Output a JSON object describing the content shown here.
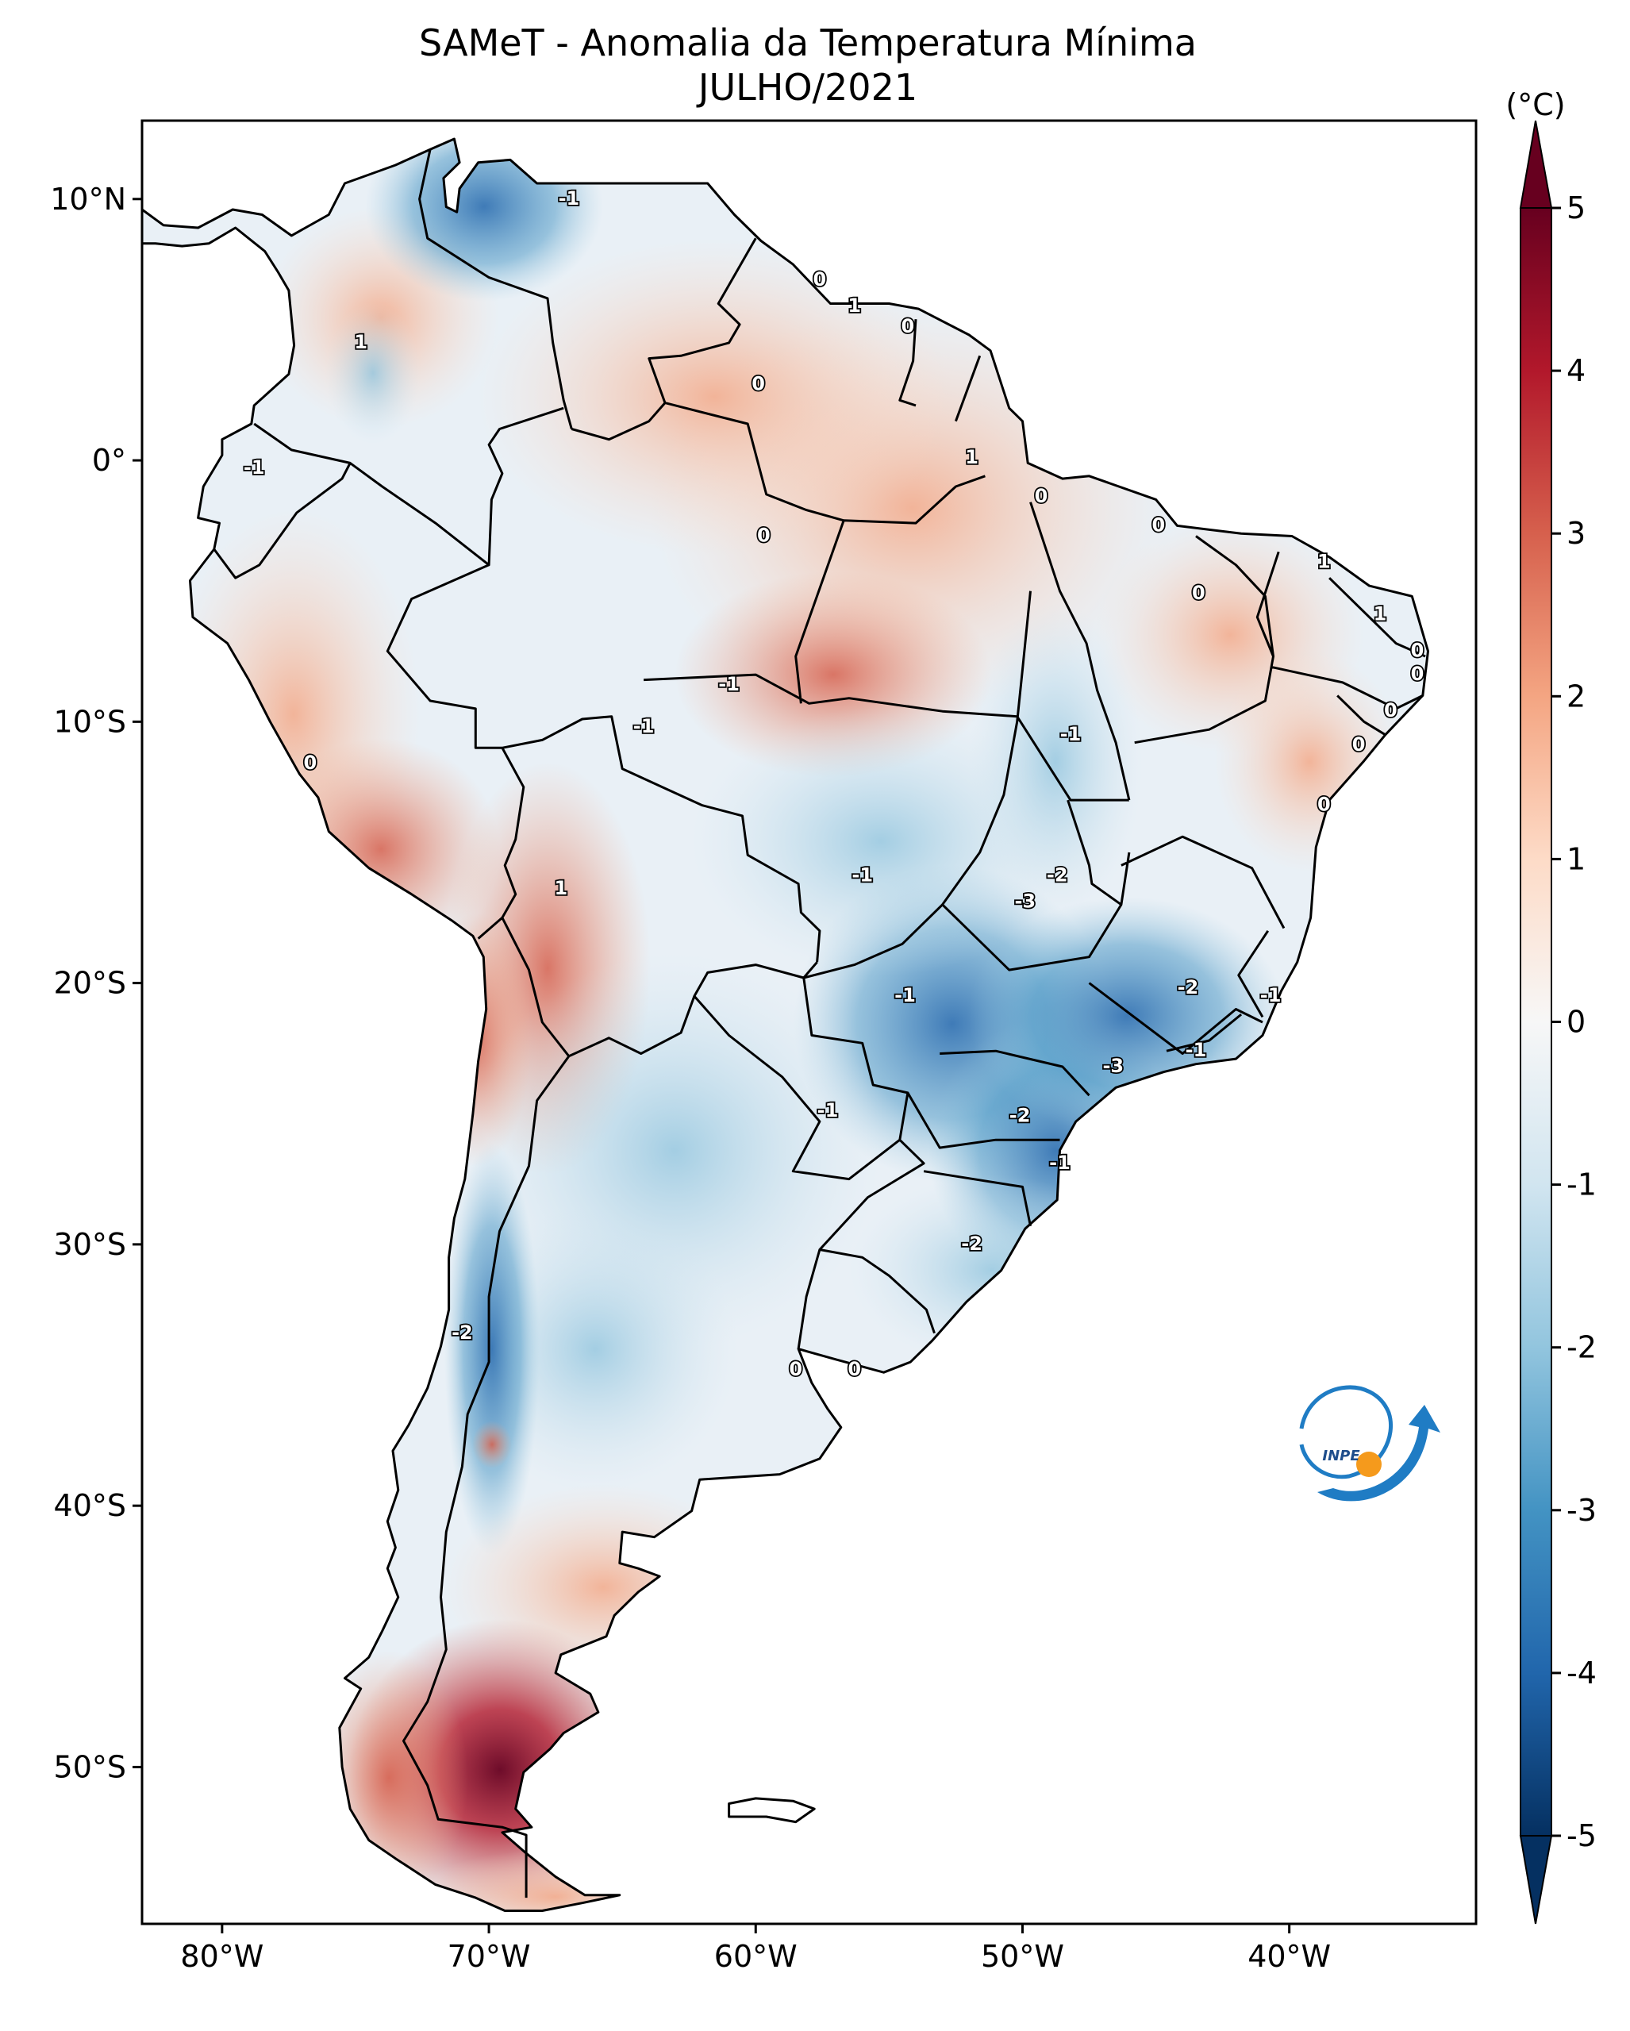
{
  "title": {
    "line1": "SAMeT - Anomalia da Temperatura Mínima",
    "line2": "JULHO/2021"
  },
  "map": {
    "lon_range": [
      -83,
      -33
    ],
    "lat_range": [
      -56,
      13
    ],
    "lon_ticks": [
      "80°W",
      "70°W",
      "60°W",
      "50°W",
      "40°W"
    ],
    "lat_ticks": [
      "10°N",
      "0°",
      "10°S",
      "20°S",
      "30°S",
      "40°S",
      "50°S"
    ],
    "contour_labels": [
      {
        "lon": -67.0,
        "lat": 10.0,
        "text": "-1"
      },
      {
        "lon": -74.8,
        "lat": 4.5,
        "text": "1"
      },
      {
        "lon": -78.8,
        "lat": -0.3,
        "text": "-1"
      },
      {
        "lon": -64.2,
        "lat": -10.2,
        "text": "-1"
      },
      {
        "lon": -61.0,
        "lat": -8.6,
        "text": "-1"
      },
      {
        "lon": -76.7,
        "lat": -11.6,
        "text": "0"
      },
      {
        "lon": -67.3,
        "lat": -16.4,
        "text": "1"
      },
      {
        "lon": -59.7,
        "lat": -2.9,
        "text": "0"
      },
      {
        "lon": -59.9,
        "lat": 2.9,
        "text": "0"
      },
      {
        "lon": -57.6,
        "lat": 6.9,
        "text": "0"
      },
      {
        "lon": -56.3,
        "lat": 5.9,
        "text": "1"
      },
      {
        "lon": -54.3,
        "lat": 5.1,
        "text": "0"
      },
      {
        "lon": -51.9,
        "lat": 0.1,
        "text": "1"
      },
      {
        "lon": -49.3,
        "lat": -1.4,
        "text": "0"
      },
      {
        "lon": -44.9,
        "lat": -2.5,
        "text": "0"
      },
      {
        "lon": -43.4,
        "lat": -5.1,
        "text": "0"
      },
      {
        "lon": -38.7,
        "lat": -3.9,
        "text": "1"
      },
      {
        "lon": -36.6,
        "lat": -5.9,
        "text": "1"
      },
      {
        "lon": -35.2,
        "lat": -7.3,
        "text": "0"
      },
      {
        "lon": -35.2,
        "lat": -8.2,
        "text": "0"
      },
      {
        "lon": -36.2,
        "lat": -9.6,
        "text": "0"
      },
      {
        "lon": -37.4,
        "lat": -10.9,
        "text": "0"
      },
      {
        "lon": -38.7,
        "lat": -13.2,
        "text": "0"
      },
      {
        "lon": -48.2,
        "lat": -10.5,
        "text": "-1"
      },
      {
        "lon": -56.0,
        "lat": -15.9,
        "text": "-1"
      },
      {
        "lon": -49.9,
        "lat": -16.9,
        "text": "-3"
      },
      {
        "lon": -48.7,
        "lat": -15.9,
        "text": "-2"
      },
      {
        "lon": -43.8,
        "lat": -20.2,
        "text": "-2"
      },
      {
        "lon": -40.7,
        "lat": -20.5,
        "text": "-1"
      },
      {
        "lon": -54.4,
        "lat": -20.5,
        "text": "-1"
      },
      {
        "lon": -46.6,
        "lat": -23.2,
        "text": "-3"
      },
      {
        "lon": -43.5,
        "lat": -22.6,
        "text": "-1"
      },
      {
        "lon": -50.1,
        "lat": -25.1,
        "text": "-2"
      },
      {
        "lon": -48.6,
        "lat": -26.9,
        "text": "-1"
      },
      {
        "lon": -57.3,
        "lat": -24.9,
        "text": "-1"
      },
      {
        "lon": -51.9,
        "lat": -30.0,
        "text": "-2"
      },
      {
        "lon": -58.5,
        "lat": -34.8,
        "text": "0"
      },
      {
        "lon": -56.3,
        "lat": -34.8,
        "text": "0"
      },
      {
        "lon": -71.0,
        "lat": -33.4,
        "text": "-2"
      }
    ],
    "logo_text": "INPE"
  },
  "colorbar": {
    "unit_label": "(°C)",
    "range": [
      -5,
      5
    ],
    "tick_labels": [
      "5",
      "4",
      "3",
      "2",
      "1",
      "0",
      "-1",
      "-2",
      "-3",
      "-4",
      "-5"
    ],
    "colors": [
      "#053061",
      "#2166ac",
      "#4393c3",
      "#92c5de",
      "#d1e5f0",
      "#f7f7f7",
      "#fddbc7",
      "#f4a582",
      "#d6604d",
      "#b2182b",
      "#67001f"
    ]
  }
}
